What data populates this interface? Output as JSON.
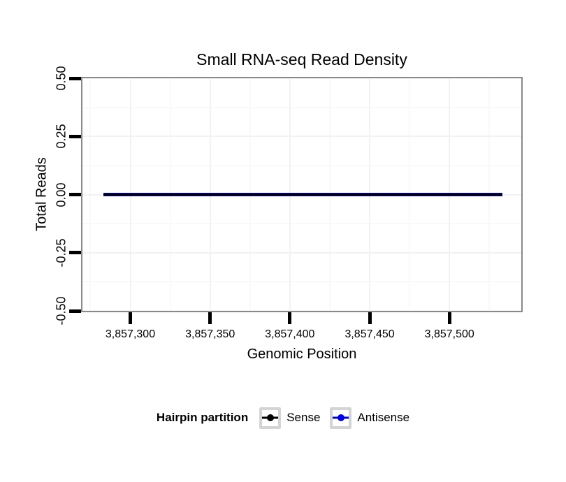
{
  "figure": {
    "title": "Small RNA-seq Read Density",
    "x_axis": {
      "label": "Genomic Position"
    },
    "y_axis": {
      "label": "Total Reads"
    },
    "legend": {
      "title": "Hairpin partition",
      "entries": [
        {
          "label": "Sense",
          "color": "#000000"
        },
        {
          "label": "Antisense",
          "color": "#0000EE"
        }
      ]
    }
  },
  "colors": {
    "panel_border": "#898989",
    "tick_mark": "#000000",
    "grid_major": "#f2f2f2",
    "grid_minor": "#f9f9f9",
    "sense_line": "#000000",
    "antisense_line": "#0000EE",
    "legend_key_border": "#d4d4d4"
  },
  "chart_data": {
    "type": "line",
    "title": "Small RNA-seq Read Density",
    "xlabel": "Genomic Position",
    "ylabel": "Total Reads",
    "xlim": [
      3857270,
      3857545
    ],
    "ylim": [
      -0.5,
      0.5
    ],
    "x_ticks": [
      3857300,
      3857350,
      3857400,
      3857450,
      3857500
    ],
    "x_tick_labels": [
      "3,857,300",
      "3,857,350",
      "3,857,400",
      "3,857,450",
      "3,857,500"
    ],
    "y_ticks": [
      0.5,
      0.25,
      0,
      -0.25,
      -0.5
    ],
    "y_tick_labels": [
      "0.50",
      "0.25",
      "0.00",
      "-0.25",
      "-0.50"
    ],
    "grid": true,
    "legend_position": "bottom",
    "series": [
      {
        "name": "Antisense",
        "color": "#0000EE",
        "stroke_px": 5,
        "x": [
          3857283,
          3857533
        ],
        "y": [
          0,
          0
        ]
      },
      {
        "name": "Sense",
        "color": "#000000",
        "stroke_px": 3,
        "x": [
          3857283,
          3857533
        ],
        "y": [
          0,
          0
        ]
      }
    ]
  }
}
